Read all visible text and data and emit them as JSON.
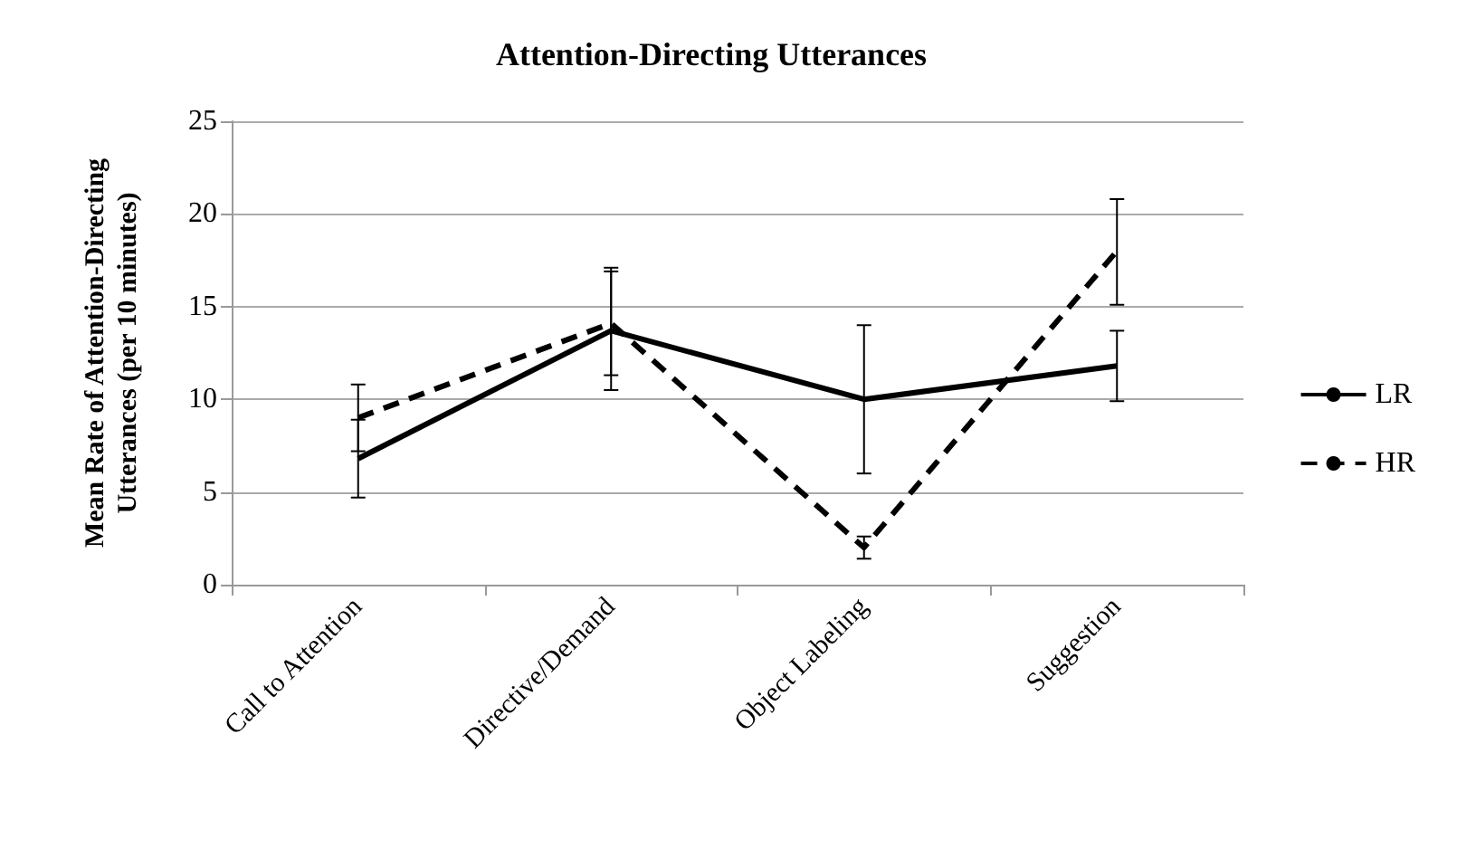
{
  "chart_data": {
    "type": "line",
    "title": "Attention-Directing Utterances",
    "ylabel": "Mean Rate of Attention-Directing\nUtterances (per 10 minutes)",
    "categories": [
      "Call to Attention",
      "Directive/Demand",
      "Object Labeling",
      "Suggestion"
    ],
    "series": [
      {
        "name": "LR",
        "color": "#000000",
        "line_style": "solid",
        "values": [
          6.8,
          13.7,
          10.0,
          11.8
        ],
        "errors": [
          [
            4.7,
            8.9
          ],
          [
            10.5,
            17.1
          ],
          [
            6.0,
            14.0
          ],
          [
            9.9,
            13.7
          ]
        ]
      },
      {
        "name": "HR",
        "color": "#000000",
        "line_style": "dashed",
        "values": [
          9.0,
          14.1,
          2.0,
          18.0
        ],
        "errors": [
          [
            7.2,
            10.8
          ],
          [
            11.3,
            16.9
          ],
          [
            1.4,
            2.6
          ],
          [
            15.1,
            20.8
          ]
        ]
      }
    ],
    "ylim": [
      0,
      25
    ],
    "yticks": [
      0,
      5,
      10,
      15,
      20,
      25
    ],
    "grid": "y",
    "legend": "right",
    "marker": "none"
  }
}
